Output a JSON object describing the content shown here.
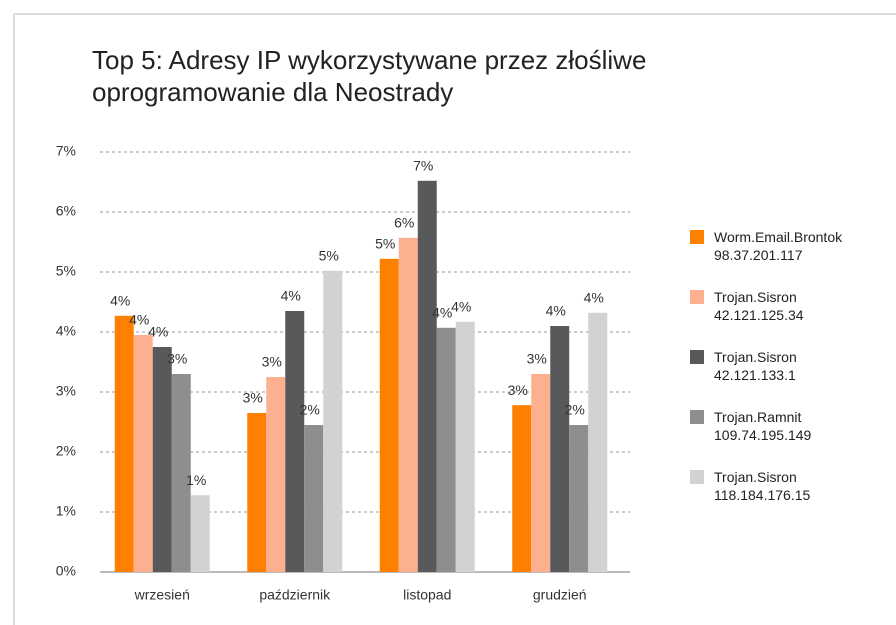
{
  "chart_data": {
    "type": "bar",
    "title": "Top 5: Adresy IP wykorzystywane przez złośliwe\noprogramowanie dla Neostrady",
    "categories": [
      "wrzesień",
      "październik",
      "listopad",
      "grudzień"
    ],
    "series": [
      {
        "name": "Worm.Email.Brontok\n98.37.201.117",
        "color": "#ff8000",
        "values": [
          4.27,
          2.65,
          5.22,
          2.78
        ],
        "value_labels": [
          "4%",
          "3%",
          "5%",
          "3%"
        ]
      },
      {
        "name": "Trojan.Sisron\n42.121.125.34",
        "color": "#fdb08f",
        "values": [
          3.95,
          3.25,
          5.57,
          3.3
        ],
        "value_labels": [
          "4%",
          "3%",
          "6%",
          "3%"
        ]
      },
      {
        "name": "Trojan.Sisron\n42.121.133.1",
        "color": "#58595b",
        "values": [
          3.75,
          4.35,
          6.52,
          4.1
        ],
        "value_labels": [
          "4%",
          "4%",
          "7%",
          "4%"
        ]
      },
      {
        "name": "Trojan.Ramnit\n109.74.195.149",
        "color": "#8d8e90",
        "values": [
          3.3,
          2.45,
          4.07,
          2.45
        ],
        "value_labels": [
          "3%",
          "2%",
          "4%",
          "2%"
        ]
      },
      {
        "name": "Trojan.Sisron\n118.184.176.15",
        "color": "#d1d2d4",
        "values": [
          1.28,
          5.02,
          4.17,
          4.32
        ],
        "value_labels": [
          "1%",
          "5%",
          "4%",
          "4%"
        ]
      }
    ],
    "ylim": [
      0,
      7
    ],
    "yticks": [
      {
        "value": 0,
        "label": "0%"
      },
      {
        "value": 1,
        "label": "1%"
      },
      {
        "value": 2,
        "label": "2%"
      },
      {
        "value": 3,
        "label": "3%"
      },
      {
        "value": 4,
        "label": "4%"
      },
      {
        "value": 5,
        "label": "5%"
      },
      {
        "value": 6,
        "label": "6%"
      },
      {
        "value": 7,
        "label": "7%"
      }
    ],
    "grid": true,
    "legend": "right"
  }
}
